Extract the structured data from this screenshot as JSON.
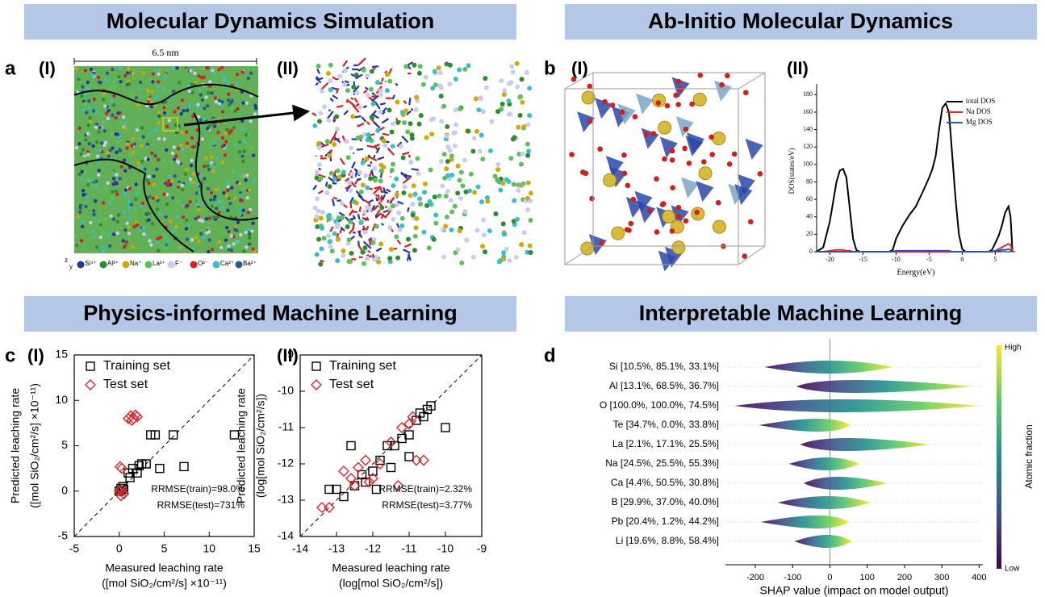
{
  "headers": [
    "Molecular Dynamics Simulation",
    "Ab-Initio Molecular Dynamics",
    "Physics-informed Machine Learning",
    "Interpretable Machine Learning"
  ],
  "panels": [
    {
      "letter": "a",
      "sub": [
        "(I)",
        "(II)"
      ]
    },
    {
      "letter": "b",
      "sub": [
        "(I)",
        "(II)"
      ]
    },
    {
      "letter": "c",
      "sub": [
        "(I)",
        "(II)"
      ]
    },
    {
      "letter": "d"
    }
  ],
  "md": {
    "scale": "6.5 nm",
    "axes": [
      "z",
      "y"
    ],
    "legend": [
      {
        "label": "Si⁴⁺",
        "color": "#2336a0"
      },
      {
        "label": "Al³⁺",
        "color": "#2e8b2e"
      },
      {
        "label": "Na⁺",
        "color": "#d4a800"
      },
      {
        "label": "La³⁺",
        "color": "#5cc05c"
      },
      {
        "label": "F⁻",
        "color": "#c8cdee"
      },
      {
        "label": "O²⁻",
        "color": "#d62020"
      },
      {
        "label": "Ca²⁺",
        "color": "#38c0c8"
      },
      {
        "label": "Ba²⁺",
        "color": "#2a5a8a"
      }
    ]
  },
  "chart_data": [
    {
      "type": "line",
      "xlabel": [
        "Energy(eV)"
      ],
      "ylabel": [
        "DOS(states/eV)"
      ],
      "x": [
        -22,
        -21,
        -20,
        -19,
        -18.5,
        -18,
        -17.5,
        -17,
        -16.5,
        -16,
        -15.5,
        -11,
        -10.5,
        -10,
        -9,
        -8,
        -7,
        -6,
        -5,
        -4.5,
        -4,
        -3.5,
        -3,
        -2.5,
        -2,
        -1.5,
        -1,
        -0.5,
        0,
        0.5,
        4,
        4.5,
        5,
        5.5,
        6,
        6.5,
        7,
        7.3,
        7.6
      ],
      "series": [
        {
          "name": "total DOS",
          "color": "#000000",
          "values": [
            0,
            5,
            35,
            80,
            93,
            95,
            85,
            50,
            15,
            2,
            0,
            0,
            2,
            15,
            30,
            42,
            52,
            68,
            85,
            95,
            110,
            140,
            165,
            170,
            160,
            110,
            60,
            20,
            3,
            0,
            0,
            2,
            10,
            18,
            30,
            45,
            52,
            40,
            0
          ]
        },
        {
          "name": "Na DOS",
          "color": "#e8262a",
          "values": [
            0,
            0,
            1,
            2,
            2,
            2,
            1,
            1,
            0,
            0,
            0,
            0,
            0,
            0,
            0,
            0,
            0,
            0,
            0,
            0,
            0,
            0,
            0,
            0,
            0,
            0,
            0,
            0,
            0,
            0,
            0,
            0,
            1,
            3,
            5,
            7,
            9,
            8,
            0
          ]
        },
        {
          "name": "Mg DOS",
          "color": "#2a4fd0",
          "values": [
            0,
            0,
            0,
            0,
            0,
            0,
            0,
            0,
            0,
            0,
            0,
            0,
            0,
            1,
            1,
            1,
            1,
            1,
            1,
            1,
            1,
            1,
            1,
            1,
            1,
            0,
            0,
            0,
            0,
            0,
            0,
            0,
            1,
            1,
            2,
            2,
            3,
            2,
            0
          ]
        }
      ],
      "xlim": [
        -22,
        8
      ],
      "xticks": [
        -20,
        -15,
        -10,
        -5,
        0,
        5
      ],
      "ylim": [
        0,
        185
      ],
      "yticks": [
        0,
        20,
        40,
        60,
        80,
        100,
        120,
        140,
        160,
        180
      ],
      "legend": "upper right"
    },
    {
      "type": "scatter",
      "xlabel": [
        "Measured leaching rate",
        "([mol SiO₂/cm²/s] ×10⁻¹¹)"
      ],
      "ylabel": [
        "Predicted leaching rate",
        "([mol SiO₂/cm²/s] ×10⁻¹¹)"
      ],
      "xlim": [
        -5,
        15
      ],
      "xticks": [
        -5,
        0,
        5,
        10,
        15
      ],
      "ylim": [
        -5,
        15
      ],
      "yticks": [
        -5,
        0,
        5,
        10,
        15
      ],
      "diagonal": true,
      "legend": "upper left",
      "series": [
        {
          "name": "Training set",
          "marker": "square",
          "color": "#000000",
          "x": [
            0,
            0.2,
            0.5,
            1,
            1.5,
            2,
            2.5,
            3,
            3.5,
            4,
            4.5,
            6,
            7.2,
            12.8,
            1.2,
            2.2,
            0.4
          ],
          "values": [
            0,
            0.3,
            0.2,
            2,
            2.5,
            2,
            3,
            3,
            6.2,
            6.2,
            2.5,
            6.2,
            2.7,
            6.2,
            1.5,
            2.8,
            0.5
          ]
        },
        {
          "name": "Test set",
          "marker": "diamond",
          "color": "#e0262a",
          "x": [
            0.3,
            0,
            0.2,
            0.5,
            1,
            1.3,
            1.6,
            2,
            1.4,
            0.1,
            0.3,
            1.8
          ],
          "values": [
            2.5,
            0,
            -0.5,
            -0.3,
            8,
            8.3,
            8,
            8.2,
            7.8,
            2.7,
            0.2,
            8.4
          ]
        }
      ],
      "annotations": [
        {
          "text": "RRMSE(train)=98.0%",
          "color": "#2a3fbf"
        },
        {
          "text": "RRMSE(test)=731%",
          "color": "#2a3fbf"
        }
      ]
    },
    {
      "type": "scatter",
      "xlabel": [
        "Measured leaching rate",
        "(log[mol SiO₂/cm²/s])"
      ],
      "ylabel": [
        "Predicted leaching rate",
        "(log[mol SiO₂/cm²/s])"
      ],
      "xlim": [
        -14,
        -9
      ],
      "xticks": [
        -14,
        -13,
        -12,
        -11,
        -10,
        -9
      ],
      "ylim": [
        -14,
        -9
      ],
      "yticks": [
        -14,
        -13,
        -12,
        -11,
        -10,
        -9
      ],
      "diagonal": true,
      "legend": "upper left",
      "series": [
        {
          "name": "Training set",
          "marker": "square",
          "color": "#000000",
          "x": [
            -13.2,
            -13,
            -12.8,
            -12.5,
            -12.3,
            -12,
            -11.8,
            -11.6,
            -11.4,
            -11.2,
            -11,
            -10.8,
            -10.7,
            -10.5,
            -10.4,
            -10,
            -10.6,
            -12.2,
            -11.9,
            -11.5,
            -12.6,
            -11
          ],
          "values": [
            -12.7,
            -12.7,
            -12.9,
            -12.6,
            -12.3,
            -12.2,
            -11.9,
            -11.5,
            -11.5,
            -11.3,
            -11.2,
            -10.8,
            -10.6,
            -10.5,
            -10.4,
            -11,
            -10.7,
            -12.5,
            -12.7,
            -12.1,
            -11.5,
            -11.8
          ]
        },
        {
          "name": "Test set",
          "marker": "diamond",
          "color": "#e0262a",
          "x": [
            -13.4,
            -13.2,
            -12.8,
            -12.6,
            -12.4,
            -12.2,
            -12,
            -11.8,
            -11.5,
            -11.2,
            -11,
            -10.8,
            -10.6,
            -10.9,
            -12.1,
            -11.3,
            -12.5
          ],
          "values": [
            -13.2,
            -13.2,
            -12.2,
            -12.4,
            -12.1,
            -11.9,
            -12.4,
            -12,
            -11.4,
            -11,
            -10.9,
            -11.9,
            -11.9,
            -10.7,
            -12.5,
            -12.6,
            -12.6
          ]
        }
      ],
      "annotations": [
        {
          "text": "RRMSE(train)=2.32%",
          "color": "#2a3fbf"
        },
        {
          "text": "RRMSE(test)=3.77%",
          "color": "#2a3fbf"
        }
      ]
    },
    {
      "type": "beeswarm",
      "xlabel": [
        "SHAP value (impact on model output)"
      ],
      "categories": [
        "Si [10.5%, 85.1%, 33.1%]",
        "Al [13.1%, 68.5%, 36.7%]",
        "O [100.0%, 100.0%, 74.5%]",
        "Te [34.7%, 0.0%, 33.8%]",
        "La [2.1%, 17.1%, 25.5%]",
        "Na [24.5%, 25.5%, 55.3%]",
        "Ca [4.4%, 50.5%, 30.8%]",
        "B [29.9%, 37.0%, 40.0%]",
        "Pb [20.4%, 1.2%, 44.2%]",
        "Li [19.6%, 8.8%, 58.4%]"
      ],
      "ranges": [
        [
          -175,
          170
        ],
        [
          -90,
          385
        ],
        [
          -255,
          400
        ],
        [
          -190,
          55
        ],
        [
          -80,
          270
        ],
        [
          -110,
          80
        ],
        [
          -70,
          155
        ],
        [
          -140,
          110
        ],
        [
          -185,
          50
        ],
        [
          -95,
          60
        ]
      ],
      "xlim": [
        -280,
        410
      ],
      "xticks": [
        -200,
        -100,
        0,
        100,
        200,
        300,
        400
      ],
      "colorbar_label": "Atomic fraction",
      "colorbar_high": "High",
      "colorbar_low": "Low",
      "colormap": [
        "#440154",
        "#3b528b",
        "#21918c",
        "#5ec962",
        "#fde725"
      ]
    }
  ]
}
